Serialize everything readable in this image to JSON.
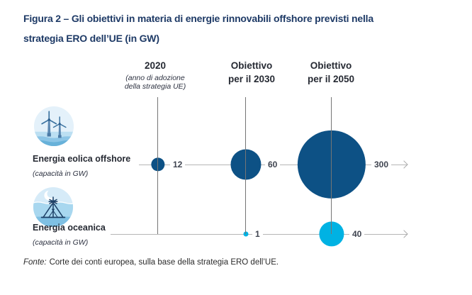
{
  "figure": {
    "title_line1": "Figura 2 – Gli obiettivi in materia di energie rinnovabili offshore previsti nella",
    "title_line2": "strategia ERO dell’UE (in GW)",
    "source_prefix": "Fonte:",
    "source_text": "Corte dei conti europea, sulla base della strategia ERO dell’UE."
  },
  "columns": {
    "c2020": {
      "title": "2020",
      "subtitle_line1": "(anno di adozione",
      "subtitle_line2": "della strategia UE)"
    },
    "c2030": {
      "title_line1": "Obiettivo",
      "title_line2": "per il 2030"
    },
    "c2050": {
      "title_line1": "Obiettivo",
      "title_line2": "per il 2050"
    }
  },
  "rows": {
    "wind": {
      "label": "Energia eolica offshore",
      "unit": "(capacità in GW)",
      "icon": "offshore-wind-turbines-icon",
      "color": "#0d5185",
      "v2020": 12,
      "v2030": 60,
      "v2050": 300
    },
    "ocean": {
      "label": "Energia oceanica",
      "unit": "(capacità in GW)",
      "icon": "ocean-energy-icon",
      "color": "#00b2e3",
      "v2030": 1,
      "v2050": 40
    }
  },
  "colors": {
    "title_text": "#1e3a66",
    "dark_text": "#262a33",
    "number_text": "#3f4450",
    "wind_bubble": "#0d5185",
    "ocean_bubble": "#00b2e3",
    "column_line": "#757575",
    "row_line": "#b5b5b5"
  },
  "chart_data": {
    "type": "scatter",
    "subtype": "bubble",
    "title": "Figura 2 – Gli obiettivi in materia di energie rinnovabili offshore previsti nella strategia ERO dell’UE (in GW)",
    "categories": [
      "2020 (anno di adozione della strategia UE)",
      "Obiettivo per il 2030",
      "Obiettivo per il 2050"
    ],
    "series": [
      {
        "name": "Energia eolica offshore (capacità in GW)",
        "values": [
          12,
          60,
          300
        ],
        "color": "#0d5185"
      },
      {
        "name": "Energia oceanica (capacità in GW)",
        "values": [
          null,
          1,
          40
        ],
        "color": "#00b2e3"
      }
    ],
    "size_encoding": "bubble area proportional to capacity in GW",
    "legend_position": "row labels at left",
    "grid": false,
    "source": "Fonte: Corte dei conti europea, sulla base della strategia ERO dell’UE."
  }
}
